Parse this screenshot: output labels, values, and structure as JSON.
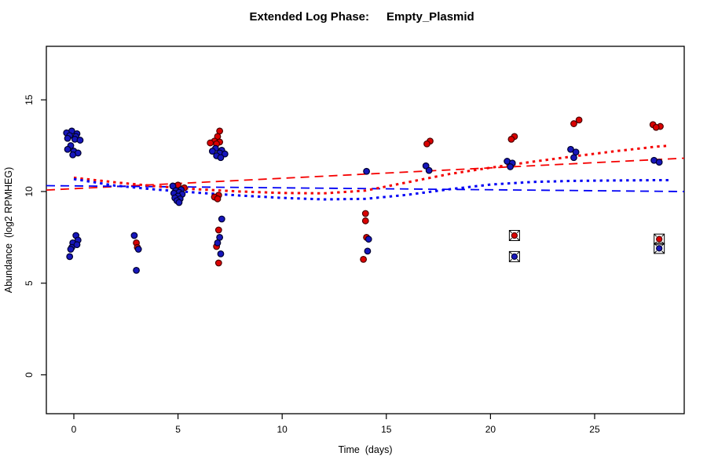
{
  "window": {
    "background": "#FFFFFF"
  },
  "title": {
    "left": "Extended Log Phase:",
    "right": "Empty_Plasmid",
    "full": "Extended Log Phase:      Empty_Plasmid"
  },
  "chart_data": {
    "type": "scatter",
    "title": "Extended Log Phase:      Empty_Plasmid",
    "xlabel": "Time  (days)",
    "ylabel": "Abundance  (log2 RPMHEG)",
    "x_ticks": [
      0,
      5,
      10,
      15,
      20,
      25
    ],
    "y_ticks": [
      0,
      5,
      10,
      15
    ],
    "xlim": [
      -1.32,
      29.3
    ],
    "ylim": [
      -2.12,
      17.92
    ],
    "grid": false,
    "legend": null,
    "point_colors": {
      "red_fill": "#DC0000",
      "red_stroke": "#4A0000",
      "blue_fill": "#1616BC",
      "blue_stroke": "#00002E",
      "flag_stroke": "#000000"
    },
    "line_colors": {
      "red": "#F50000",
      "blue": "#0000F5"
    },
    "series": [
      {
        "name": "red-points",
        "marker": "circle",
        "fill": "#DC0000",
        "stroke": "#4A0000",
        "points": [
          [
            3,
            7.2,
            0
          ],
          [
            3,
            6.95,
            0.05
          ],
          [
            5,
            10.35,
            0
          ],
          [
            5,
            10.2,
            0.3
          ],
          [
            7,
            13.3,
            0
          ],
          [
            7,
            13.0,
            -0.1
          ],
          [
            7,
            12.75,
            -0.25
          ],
          [
            7,
            12.7,
            0
          ],
          [
            7,
            12.65,
            -0.45
          ],
          [
            7,
            12.6,
            -0.15
          ],
          [
            7,
            9.8,
            -0.05
          ],
          [
            7,
            9.7,
            -0.25
          ],
          [
            7,
            9.6,
            -0.1
          ],
          [
            7,
            7.9,
            -0.05
          ],
          [
            7,
            7.0,
            -0.15
          ],
          [
            7,
            6.1,
            -0.05
          ],
          [
            14,
            8.8,
            0
          ],
          [
            14,
            8.4,
            0
          ],
          [
            14,
            7.5,
            0.05
          ],
          [
            14,
            6.3,
            -0.1
          ],
          [
            17,
            12.75,
            0.1
          ],
          [
            17,
            12.6,
            -0.05
          ],
          [
            21,
            13.0,
            0.15
          ],
          [
            21,
            12.85,
            0
          ],
          [
            24,
            13.9,
            0.25
          ],
          [
            24,
            13.7,
            0
          ],
          [
            28,
            13.65,
            -0.2
          ],
          [
            28,
            13.55,
            0.15
          ],
          [
            28,
            13.5,
            -0.05
          ]
        ]
      },
      {
        "name": "blue-points",
        "marker": "circle",
        "fill": "#1616BC",
        "stroke": "#00002E",
        "points": [
          [
            0,
            13.3,
            -0.1
          ],
          [
            0,
            13.2,
            -0.35
          ],
          [
            0,
            13.15,
            0.15
          ],
          [
            0,
            13.05,
            -0.2
          ],
          [
            0,
            13.0,
            0.1
          ],
          [
            0,
            12.9,
            -0.3
          ],
          [
            0,
            12.85,
            0.05
          ],
          [
            0,
            12.8,
            0.3
          ],
          [
            0,
            12.5,
            -0.15
          ],
          [
            0,
            12.3,
            -0.3
          ],
          [
            0,
            12.2,
            0
          ],
          [
            0,
            12.1,
            0.2
          ],
          [
            0,
            12.0,
            -0.05
          ],
          [
            0,
            7.6,
            0.1
          ],
          [
            0,
            7.35,
            0.2
          ],
          [
            0,
            7.2,
            -0.05
          ],
          [
            0,
            7.1,
            0.15
          ],
          [
            0,
            6.95,
            -0.1
          ],
          [
            0,
            6.85,
            -0.15
          ],
          [
            0,
            6.45,
            -0.2
          ],
          [
            3,
            7.6,
            -0.1
          ],
          [
            3,
            6.85,
            0.1
          ],
          [
            3,
            5.7,
            0
          ],
          [
            5,
            10.3,
            -0.25
          ],
          [
            5,
            10.1,
            0.15
          ],
          [
            5,
            10.05,
            -0.1
          ],
          [
            5,
            9.95,
            0.05
          ],
          [
            5,
            9.9,
            -0.2
          ],
          [
            5,
            9.85,
            0.2
          ],
          [
            5,
            9.75,
            0
          ],
          [
            5,
            9.65,
            -0.15
          ],
          [
            5,
            9.6,
            0.1
          ],
          [
            5,
            9.5,
            -0.05
          ],
          [
            5,
            9.4,
            0.05
          ],
          [
            7,
            12.35,
            -0.2
          ],
          [
            7,
            12.25,
            0.1
          ],
          [
            7,
            12.2,
            -0.35
          ],
          [
            7,
            12.1,
            0
          ],
          [
            7,
            12.05,
            0.25
          ],
          [
            7,
            11.95,
            -0.15
          ],
          [
            7,
            11.85,
            0.05
          ],
          [
            7,
            8.5,
            0.1
          ],
          [
            7,
            7.5,
            0
          ],
          [
            7,
            7.2,
            -0.1
          ],
          [
            7,
            6.6,
            0.05
          ],
          [
            14,
            11.1,
            0.05
          ],
          [
            14,
            7.4,
            0.15
          ],
          [
            14,
            6.75,
            0.1
          ],
          [
            17,
            11.4,
            -0.1
          ],
          [
            17,
            11.15,
            0.05
          ],
          [
            21,
            11.65,
            -0.2
          ],
          [
            21,
            11.55,
            0.05
          ],
          [
            21,
            11.35,
            -0.05
          ],
          [
            24,
            12.3,
            -0.15
          ],
          [
            24,
            12.15,
            0.1
          ],
          [
            24,
            11.85,
            0
          ],
          [
            28,
            11.7,
            -0.15
          ],
          [
            28,
            11.6,
            0.1
          ]
        ]
      },
      {
        "name": "flagged-red-points",
        "marker": "boxed-x",
        "fill": "#DC0000",
        "stroke": "#4A0000",
        "points": [
          [
            21,
            7.6,
            0.15
          ],
          [
            28,
            7.4,
            0.1
          ]
        ]
      },
      {
        "name": "flagged-blue-points",
        "marker": "boxed-x",
        "fill": "#1616BC",
        "stroke": "#00002E",
        "points": [
          [
            21,
            6.45,
            0.15
          ],
          [
            28,
            6.9,
            0.1
          ]
        ]
      }
    ],
    "fit_lines": [
      {
        "name": "red-linear-fit",
        "style": "dashed",
        "color": "#F50000",
        "points": [
          [
            -1.32,
            10.08
          ],
          [
            29.3,
            11.82
          ]
        ]
      },
      {
        "name": "blue-linear-fit",
        "style": "dashed",
        "color": "#0000F5",
        "points": [
          [
            -1.32,
            10.32
          ],
          [
            29.3,
            10.0
          ]
        ]
      },
      {
        "name": "red-smooth-fit",
        "style": "dotted",
        "color": "#F50000",
        "points": [
          [
            0,
            10.75
          ],
          [
            2,
            10.5
          ],
          [
            4,
            10.28
          ],
          [
            6,
            10.12
          ],
          [
            8,
            10.0
          ],
          [
            10,
            9.92
          ],
          [
            12,
            9.9
          ],
          [
            14,
            10.05
          ],
          [
            16,
            10.5
          ],
          [
            18,
            10.95
          ],
          [
            20,
            11.3
          ],
          [
            22,
            11.62
          ],
          [
            24,
            11.92
          ],
          [
            26,
            12.2
          ],
          [
            28,
            12.45
          ],
          [
            28.6,
            12.5
          ]
        ]
      },
      {
        "name": "blue-smooth-fit",
        "style": "dotted",
        "color": "#0000F5",
        "points": [
          [
            0,
            10.68
          ],
          [
            2,
            10.32
          ],
          [
            4,
            10.1
          ],
          [
            6,
            9.93
          ],
          [
            8,
            9.78
          ],
          [
            10,
            9.65
          ],
          [
            12,
            9.57
          ],
          [
            14,
            9.6
          ],
          [
            16,
            9.82
          ],
          [
            18,
            10.12
          ],
          [
            20,
            10.38
          ],
          [
            22,
            10.52
          ],
          [
            24,
            10.58
          ],
          [
            26,
            10.6
          ],
          [
            28,
            10.62
          ],
          [
            28.6,
            10.62
          ]
        ]
      }
    ]
  }
}
